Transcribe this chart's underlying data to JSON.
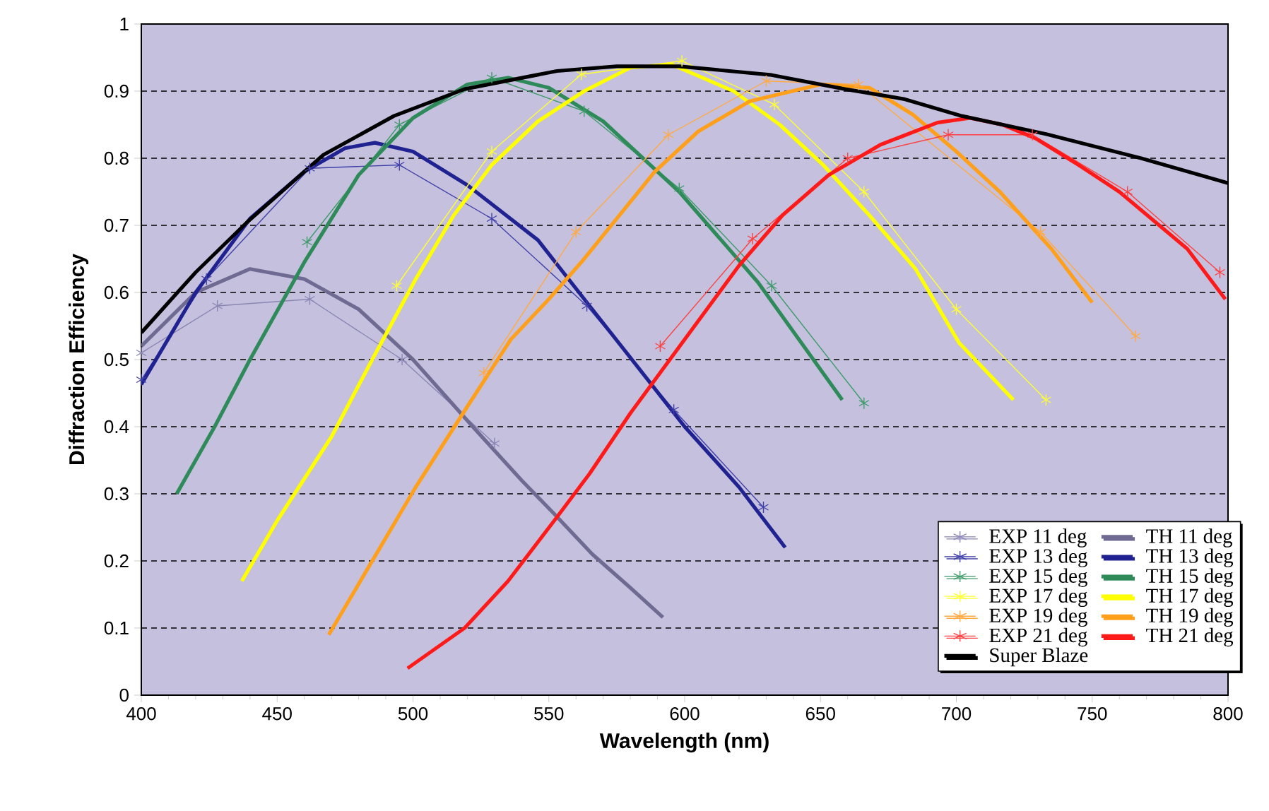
{
  "chart_data": {
    "type": "line",
    "xlabel": "Wavelength (nm)",
    "ylabel": "Diffraction Efficiency",
    "xlim": [
      400,
      800
    ],
    "xticks": [
      400,
      450,
      500,
      550,
      600,
      650,
      700,
      750,
      800
    ],
    "ylim": [
      0,
      1
    ],
    "yticks": [
      0,
      0.1,
      0.2,
      0.3,
      0.4,
      0.5,
      0.6,
      0.7,
      0.8,
      0.9,
      1
    ],
    "grid": "y",
    "legend": "bottom right",
    "series": [
      {
        "name": "EXP 11 deg",
        "color": "#8a86b4",
        "marker": "cross",
        "x": [
          400,
          428,
          462,
          496,
          530
        ],
        "values": [
          0.51,
          0.58,
          0.59,
          0.5,
          0.375
        ]
      },
      {
        "name": "TH 11 deg",
        "color": "#6e6a92",
        "marker": "none",
        "x": [
          400,
          420,
          440,
          460,
          480,
          500,
          522,
          540,
          552,
          566,
          580,
          592
        ],
        "values": [
          0.52,
          0.6,
          0.635,
          0.62,
          0.575,
          0.5,
          0.4,
          0.32,
          0.27,
          0.21,
          0.16,
          0.116
        ]
      },
      {
        "name": "EXP 13 deg",
        "color": "#4040a8",
        "marker": "cross",
        "x": [
          400,
          424,
          462,
          495,
          529,
          564,
          596,
          629
        ],
        "values": [
          0.47,
          0.62,
          0.785,
          0.79,
          0.71,
          0.58,
          0.425,
          0.28
        ]
      },
      {
        "name": "TH 13 deg",
        "color": "#1f2290",
        "marker": "none",
        "x": [
          400,
          420,
          440,
          460,
          475,
          486,
          500,
          520,
          546,
          565,
          587,
          600,
          620,
          637
        ],
        "values": [
          0.463,
          0.6,
          0.71,
          0.78,
          0.815,
          0.823,
          0.81,
          0.76,
          0.678,
          0.58,
          0.467,
          0.4,
          0.31,
          0.22
        ]
      },
      {
        "name": "EXP 15 deg",
        "color": "#3f9a6a",
        "marker": "cross",
        "x": [
          461,
          495,
          529,
          563,
          598,
          632,
          666
        ],
        "values": [
          0.675,
          0.85,
          0.92,
          0.87,
          0.755,
          0.61,
          0.435
        ]
      },
      {
        "name": "TH 15 deg",
        "color": "#2e8a58",
        "marker": "none",
        "x": [
          413,
          427,
          440,
          460,
          480,
          500,
          520,
          535,
          550,
          570,
          598,
          627,
          658
        ],
        "values": [
          0.3,
          0.4,
          0.5,
          0.645,
          0.775,
          0.86,
          0.91,
          0.92,
          0.905,
          0.855,
          0.75,
          0.615,
          0.44
        ]
      },
      {
        "name": "EXP 17 deg",
        "color": "#ffff33",
        "marker": "cross",
        "x": [
          494,
          529,
          562,
          599,
          633,
          666,
          700,
          733
        ],
        "values": [
          0.61,
          0.81,
          0.925,
          0.945,
          0.88,
          0.75,
          0.575,
          0.44
        ]
      },
      {
        "name": "TH 17 deg",
        "color": "#ffff00",
        "marker": "none",
        "x": [
          437,
          450,
          470,
          485,
          501,
          515,
          529,
          546,
          563,
          580,
          595,
          618,
          635,
          651,
          668,
          685,
          701,
          721
        ],
        "values": [
          0.17,
          0.26,
          0.385,
          0.5,
          0.62,
          0.715,
          0.79,
          0.855,
          0.9,
          0.935,
          0.94,
          0.9,
          0.85,
          0.79,
          0.715,
          0.635,
          0.525,
          0.44
        ]
      },
      {
        "name": "EXP 19 deg",
        "color": "#ffaa44",
        "marker": "cross",
        "x": [
          526,
          560,
          594,
          630,
          664,
          731,
          766
        ],
        "values": [
          0.48,
          0.69,
          0.835,
          0.915,
          0.91,
          0.69,
          0.535
        ]
      },
      {
        "name": "TH 19 deg",
        "color": "#ff9f1a",
        "marker": "none",
        "x": [
          469,
          485,
          501,
          520,
          536,
          550,
          563,
          589,
          605,
          624,
          650,
          668,
          684,
          700,
          716,
          735,
          750
        ],
        "values": [
          0.09,
          0.2,
          0.31,
          0.43,
          0.53,
          0.59,
          0.65,
          0.78,
          0.84,
          0.885,
          0.91,
          0.905,
          0.865,
          0.81,
          0.75,
          0.665,
          0.585
        ]
      },
      {
        "name": "EXP 21 deg",
        "color": "#ff4040",
        "marker": "cross",
        "x": [
          591,
          625,
          660,
          697,
          728,
          763,
          797
        ],
        "values": [
          0.52,
          0.68,
          0.8,
          0.835,
          0.835,
          0.75,
          0.63
        ]
      },
      {
        "name": "TH 21 deg",
        "color": "#ff1a1a",
        "marker": "none",
        "x": [
          498,
          519,
          535,
          552,
          565,
          580,
          600,
          620,
          636,
          653,
          672,
          693,
          705,
          717,
          729,
          745,
          760,
          785,
          799
        ],
        "values": [
          0.04,
          0.1,
          0.17,
          0.26,
          0.33,
          0.42,
          0.53,
          0.64,
          0.715,
          0.775,
          0.82,
          0.853,
          0.86,
          0.85,
          0.83,
          0.79,
          0.75,
          0.665,
          0.59
        ]
      },
      {
        "name": "Super Blaze",
        "color": "#000000",
        "marker": "none",
        "x": [
          400,
          420,
          439,
          467,
          493,
          519,
          553,
          575,
          598,
          632,
          659,
          681,
          702,
          733,
          768,
          800
        ],
        "values": [
          0.54,
          0.63,
          0.705,
          0.805,
          0.863,
          0.903,
          0.93,
          0.937,
          0.937,
          0.924,
          0.903,
          0.888,
          0.863,
          0.836,
          0.8,
          0.763
        ]
      }
    ]
  }
}
